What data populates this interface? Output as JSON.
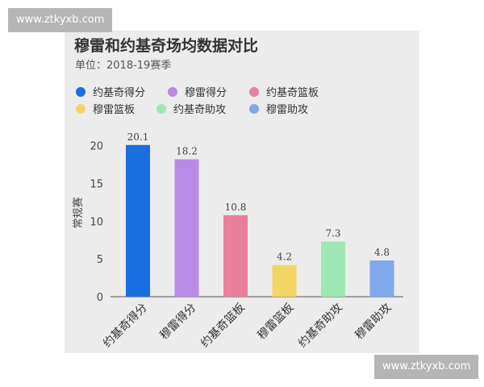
{
  "watermark_top": "www.ztkyxb.com",
  "watermark_bottom": "www.ztkyxb.com",
  "chart_data": {
    "type": "bar",
    "title": "穆雷和约基奇场均数据对比",
    "subtitle": "单位：2018-19赛季",
    "ylabel": "常规赛",
    "xlabel": "",
    "ylim": [
      0,
      22
    ],
    "yticks": [
      0,
      5,
      10,
      15,
      20
    ],
    "grid": false,
    "legend_position": "top",
    "categories": [
      "约基奇得分",
      "穆雷得分",
      "约基奇篮板",
      "穆雷篮板",
      "约基奇助攻",
      "穆雷助攻"
    ],
    "values": [
      20.1,
      18.2,
      10.8,
      4.2,
      7.3,
      4.8
    ],
    "value_labels": [
      "20.1",
      "18.2",
      "10.8",
      "4.2",
      "7.3",
      "4.8"
    ],
    "colors": [
      "#1a6fe0",
      "#b98ae8",
      "#ea7f9c",
      "#f3d565",
      "#9ee8b5",
      "#7fa9ec"
    ],
    "legend": [
      "约基奇得分",
      "穆雷得分",
      "约基奇篮板",
      "穆雷篮板",
      "约基奇助攻",
      "穆雷助攻"
    ]
  }
}
